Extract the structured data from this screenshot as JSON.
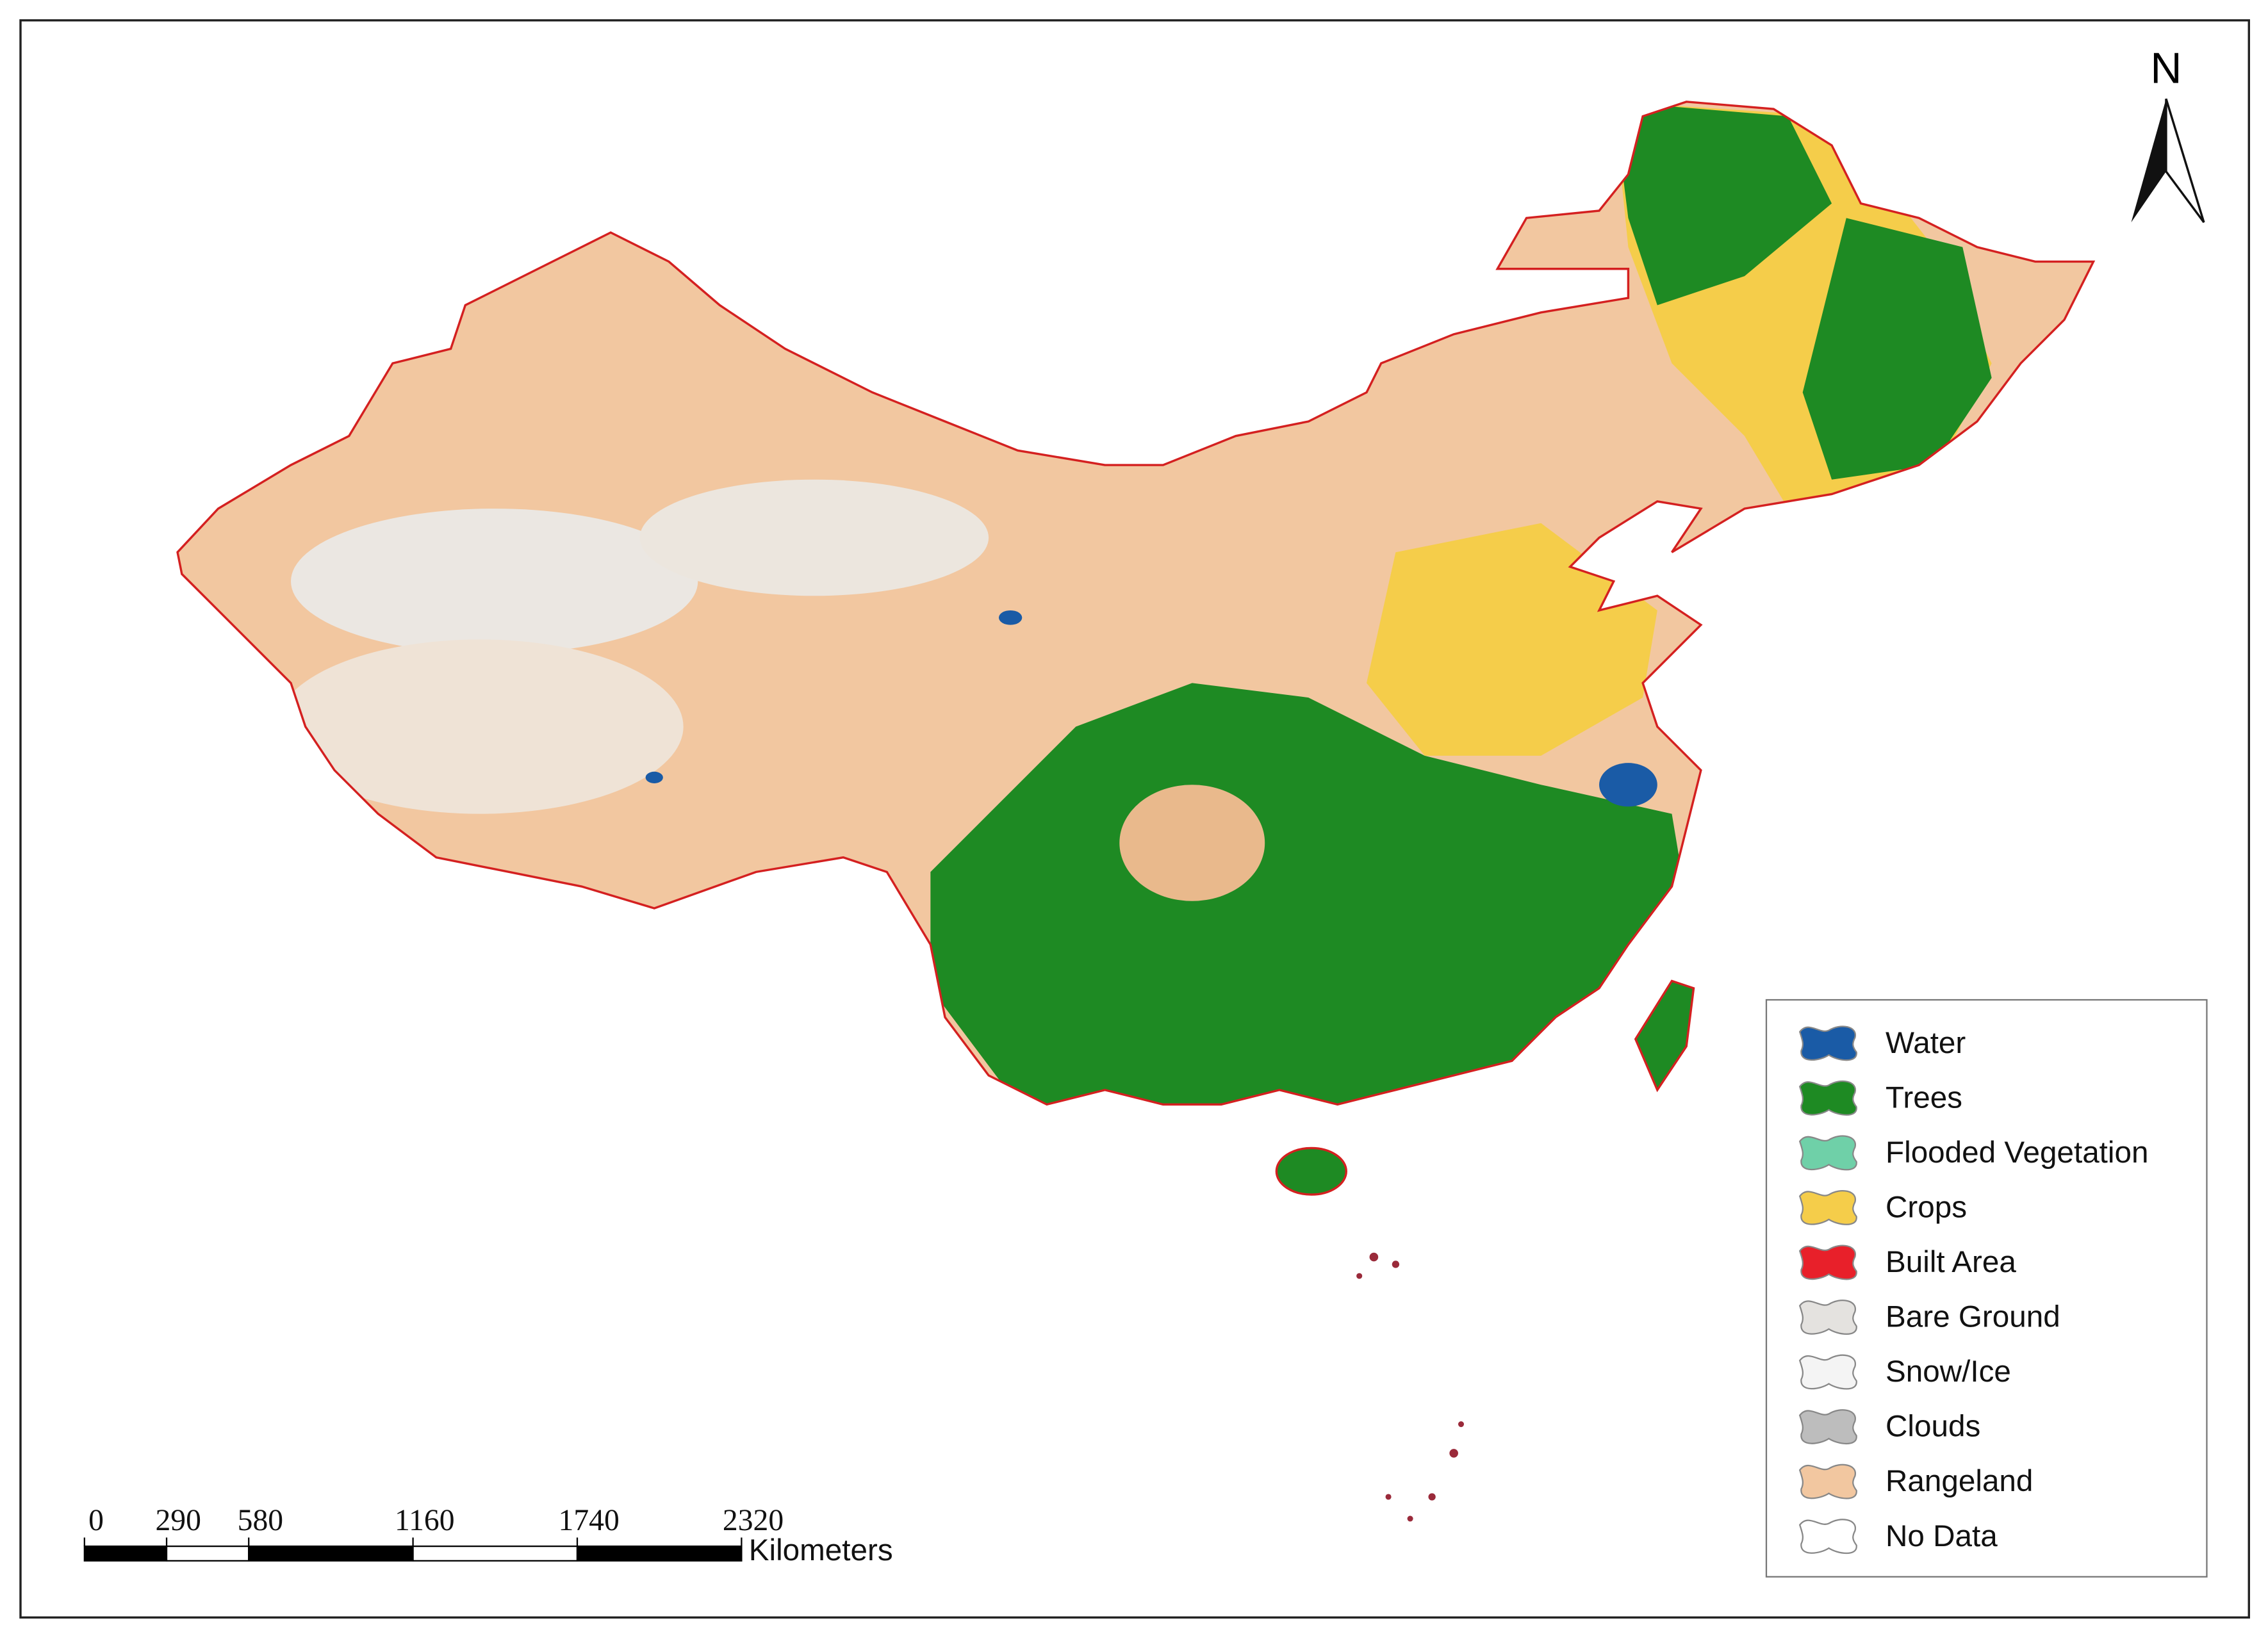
{
  "north_label": "N",
  "legend": {
    "items": [
      {
        "label": "Water",
        "color": "#1a5ba6"
      },
      {
        "label": "Trees",
        "color": "#1e8a23"
      },
      {
        "label": "Flooded Vegetation",
        "color": "#6fd0a8"
      },
      {
        "label": "Crops",
        "color": "#f5cd4a"
      },
      {
        "label": "Built Area",
        "color": "#e8202a"
      },
      {
        "label": "Bare Ground",
        "color": "#e4e2df"
      },
      {
        "label": "Snow/Ice",
        "color": "#f4f4f4"
      },
      {
        "label": "Clouds",
        "color": "#bdbdbd"
      },
      {
        "label": "Rangeland",
        "color": "#f2c7a0"
      },
      {
        "label": "No Data",
        "color": "#ffffff"
      }
    ]
  },
  "scale_bar": {
    "ticks": [
      0,
      290,
      580,
      1160,
      1740,
      2320
    ],
    "unit": "Kilometers"
  }
}
